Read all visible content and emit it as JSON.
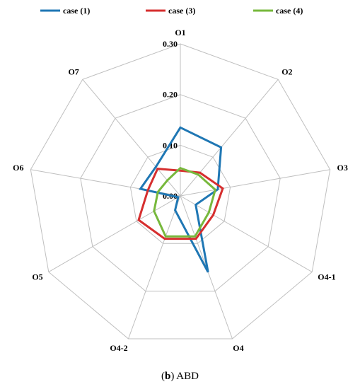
{
  "caption": {
    "panel": "b",
    "text": "ABD"
  },
  "colors": {
    "grid": "#bfbfbf",
    "series": [
      "#1f77b4",
      "#d62f2f",
      "#77b83c"
    ]
  },
  "chart_data": {
    "type": "radar",
    "categories": [
      "O1",
      "O2",
      "O3",
      "O4-1",
      "O4",
      "O4-2",
      "O5",
      "O6",
      "O7"
    ],
    "rlim": [
      0,
      0.3
    ],
    "ticks": [
      0.0,
      0.1,
      0.2,
      0.3
    ],
    "tick_labels": [
      "0.00",
      "0.10",
      "0.20",
      "0.30"
    ],
    "grid": true,
    "legend": "top",
    "series": [
      {
        "name": "case (1)",
        "values": [
          0.135,
          0.125,
          0.075,
          0.035,
          0.16,
          0.03,
          0.005,
          0.08,
          0.075
        ]
      },
      {
        "name": "case (3)",
        "values": [
          0.05,
          0.06,
          0.085,
          0.075,
          0.09,
          0.09,
          0.095,
          0.065,
          0.07
        ]
      },
      {
        "name": "case (4)",
        "values": [
          0.055,
          0.055,
          0.07,
          0.065,
          0.085,
          0.085,
          0.06,
          0.045,
          0.04
        ]
      }
    ]
  }
}
